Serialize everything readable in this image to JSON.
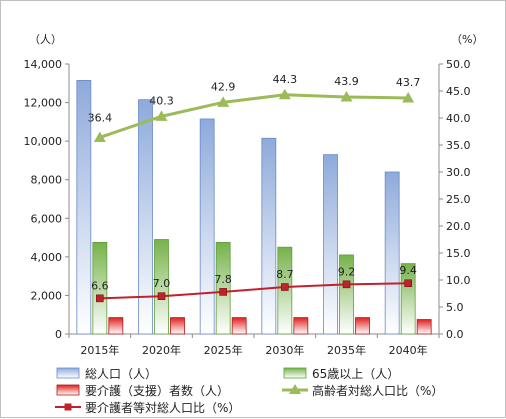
{
  "chart_data": {
    "type": "bar+line",
    "categories": [
      "2015年",
      "2020年",
      "2025年",
      "2030年",
      "2035年",
      "2040年"
    ],
    "left_axis": {
      "unit": "（人）",
      "ylim": [
        0,
        14000
      ],
      "ticks": [
        "0",
        "2,000",
        "4,000",
        "6,000",
        "8,000",
        "10,000",
        "12,000",
        "14,000"
      ]
    },
    "right_axis": {
      "unit": "（%）",
      "ylim": [
        0,
        50
      ],
      "ticks": [
        "0.0",
        "5.0",
        "10.0",
        "15.0",
        "20.0",
        "25.0",
        "30.0",
        "35.0",
        "40.0",
        "45.0",
        "50.0"
      ]
    },
    "bar_series": [
      {
        "name": "総人口（人）",
        "color": "#9bb7e0",
        "values": [
          13150,
          12150,
          11150,
          10150,
          9300,
          8400
        ]
      },
      {
        "name": "65歳以上（人）",
        "color": "#8fc46b",
        "values": [
          4750,
          4900,
          4750,
          4500,
          4100,
          3650
        ]
      },
      {
        "name": "要介護（支援）者数（人）",
        "color": "#d62828",
        "values": [
          850,
          850,
          850,
          850,
          850,
          750
        ]
      }
    ],
    "line_series": [
      {
        "name": "高齢者対総人口比（%）",
        "color": "#9bbb59",
        "marker": "triangle",
        "values": [
          36.4,
          40.3,
          42.9,
          44.3,
          43.9,
          43.7
        ],
        "labels": [
          "36.4",
          "40.3",
          "42.9",
          "44.3",
          "43.9",
          "43.7"
        ]
      },
      {
        "name": "要介護者等対総人口比（%）",
        "color": "#c0222c",
        "marker": "square",
        "values": [
          6.6,
          7.0,
          7.8,
          8.7,
          9.2,
          9.4
        ],
        "labels": [
          "6.6",
          "7.0",
          "7.8",
          "8.7",
          "9.2",
          "9.4"
        ]
      }
    ],
    "grid": false,
    "legend_position": "bottom"
  }
}
